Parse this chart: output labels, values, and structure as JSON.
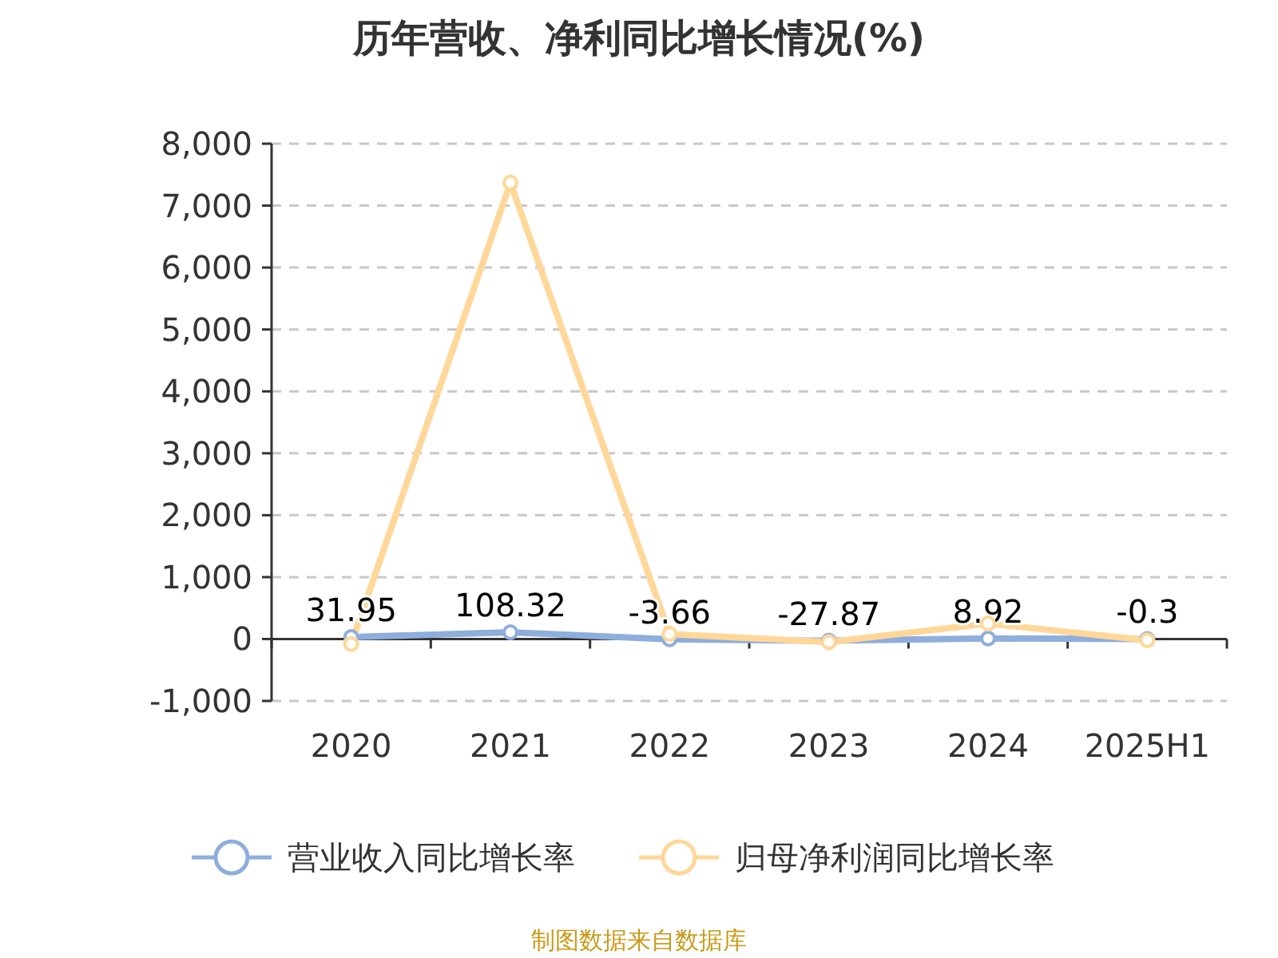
{
  "chart_data": {
    "type": "line",
    "title": "历年营收、净利同比增长情况(%)",
    "categories": [
      "2020",
      "2021",
      "2022",
      "2023",
      "2024",
      "2025H1"
    ],
    "series": [
      {
        "name": "营业收入同比增长率",
        "color": "#8eaedc",
        "values": [
          31.95,
          108.32,
          -3.66,
          -27.87,
          8.92,
          -0.3
        ],
        "value_labels": [
          "31.95",
          "108.32",
          "-3.66",
          "-27.87",
          "8.92",
          "-0.3"
        ]
      },
      {
        "name": "归母净利润同比增长率",
        "color": "#ffd799",
        "values": [
          -80,
          7370,
          80,
          -50,
          250,
          -20
        ]
      }
    ],
    "ylim": [
      -1000,
      8000
    ],
    "yticks": [
      {
        "value": -1000,
        "label": "-1,000"
      },
      0,
      {
        "value": 1000,
        "label": "1,000"
      },
      {
        "value": 2000,
        "label": "2,000"
      },
      {
        "value": 3000,
        "label": "3,000"
      },
      {
        "value": 4000,
        "label": "4,000"
      },
      {
        "value": 5000,
        "label": "5,000"
      },
      {
        "value": 6000,
        "label": "6,000"
      },
      {
        "value": 7000,
        "label": "7,000"
      },
      {
        "value": 8000,
        "label": "8,000"
      }
    ],
    "grid": "y",
    "legend": "bottom",
    "marker": "circle",
    "line_style": "solid",
    "annotations": [
      "制图数据来自数据库"
    ]
  }
}
